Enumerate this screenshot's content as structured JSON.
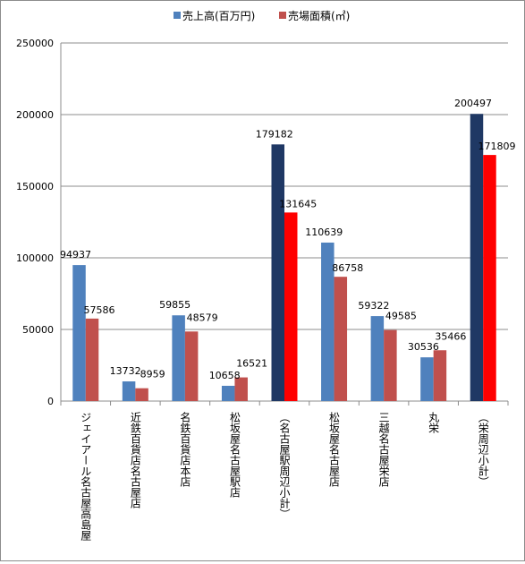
{
  "chart_data": {
    "type": "bar",
    "title": "",
    "xlabel": "",
    "ylabel": "",
    "ylim": [
      0,
      250000
    ],
    "yticks": [
      "0",
      "50000",
      "100000",
      "150000",
      "200000",
      "250000"
    ],
    "grid": true,
    "legend_position": "top",
    "categories": [
      "ジェイアール名古屋高島屋",
      "近鉄百貨店名古屋店",
      "名鉄百貨店本店",
      "松坂屋名古屋駅店",
      "（名古屋駅周辺小計）",
      "松坂屋名古屋店",
      "三越名古屋栄店",
      "丸栄",
      "（栄周辺小計）"
    ],
    "series": [
      {
        "name": "売上高(百万円)",
        "color": "#4f81bd",
        "subtotal_color": "#1f3864",
        "values": [
          94937,
          13732,
          59855,
          10658,
          179182,
          110639,
          59322,
          30536,
          200497
        ],
        "labels": [
          "94937",
          "13732",
          "59855",
          "10658",
          "179182",
          "110639",
          "59322",
          "30536",
          "200497"
        ]
      },
      {
        "name": "売場面積(㎡)",
        "color": "#c0504d",
        "subtotal_color": "#ff0000",
        "values": [
          57586,
          8959,
          48579,
          16521,
          131645,
          86758,
          49585,
          35466,
          171809
        ],
        "labels": [
          "57586",
          "8959",
          "48579",
          "16521",
          "131645",
          "86758",
          "49585",
          "35466",
          "171809"
        ]
      }
    ],
    "subtotal_indices": [
      4,
      8
    ]
  }
}
